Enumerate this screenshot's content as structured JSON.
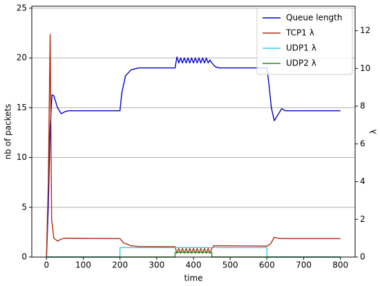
{
  "chart_data": {
    "type": "line",
    "xlabel": "time",
    "ylabel": "nb of packets",
    "y2label": "λ",
    "xlim": [
      -40,
      840
    ],
    "ylim": [
      0,
      25.2
    ],
    "y2lim": [
      0,
      13.3
    ],
    "xticks": [
      0,
      100,
      200,
      300,
      400,
      500,
      600,
      700,
      800
    ],
    "yticks": [
      0,
      5,
      10,
      15,
      20,
      25
    ],
    "y2ticks": [
      0,
      2,
      4,
      6,
      8,
      10,
      12
    ],
    "grid": true,
    "legend": "upper right",
    "series": [
      {
        "name": "Queue length",
        "color": "#0000cc",
        "axis": "y",
        "x": [
          0,
          5,
          10,
          15,
          20,
          30,
          40,
          50,
          60,
          200,
          205,
          215,
          230,
          250,
          350,
          355,
          360,
          365,
          370,
          375,
          380,
          385,
          390,
          395,
          400,
          405,
          410,
          415,
          420,
          425,
          430,
          435,
          440,
          445,
          450,
          460,
          470,
          600,
          605,
          612,
          620,
          630,
          640,
          650,
          800
        ],
        "values": [
          0,
          5,
          13,
          16.3,
          16.2,
          15,
          14.4,
          14.6,
          14.7,
          14.7,
          16.5,
          18.2,
          18.8,
          19.0,
          19.0,
          20.1,
          19.5,
          20.0,
          19.5,
          20.0,
          19.5,
          20.0,
          19.5,
          20.0,
          19.5,
          20.0,
          19.5,
          20.0,
          19.5,
          20.0,
          19.5,
          20.0,
          19.5,
          19.8,
          19.5,
          19.1,
          19.0,
          19.0,
          17.5,
          15.0,
          13.7,
          14.3,
          14.9,
          14.7,
          14.7
        ]
      },
      {
        "name": "TCP1 λ",
        "color": "#b22a0a",
        "axis": "y2",
        "x": [
          0,
          5,
          10,
          14,
          20,
          30,
          40,
          50,
          200,
          210,
          230,
          250,
          350,
          355,
          360,
          365,
          370,
          375,
          380,
          385,
          390,
          395,
          400,
          405,
          410,
          415,
          420,
          425,
          430,
          435,
          440,
          445,
          450,
          455,
          600,
          610,
          620,
          630,
          640,
          800
        ],
        "values": [
          0,
          4,
          11.8,
          2,
          1.0,
          0.85,
          0.95,
          1.0,
          0.98,
          0.75,
          0.6,
          0.56,
          0.55,
          0.2,
          0.45,
          0.2,
          0.45,
          0.2,
          0.45,
          0.2,
          0.45,
          0.2,
          0.45,
          0.2,
          0.45,
          0.2,
          0.45,
          0.2,
          0.45,
          0.2,
          0.45,
          0.2,
          0.45,
          0.6,
          0.58,
          0.7,
          1.05,
          1.0,
          0.98,
          0.98
        ]
      },
      {
        "name": "UDP1 λ",
        "color": "#33ccee",
        "axis": "y2",
        "x": [
          0,
          200,
          200,
          600,
          600,
          800
        ],
        "values": [
          0,
          0,
          0.5,
          0.5,
          0,
          0
        ]
      },
      {
        "name": "UDP2 λ",
        "color": "#228b22",
        "axis": "y2",
        "x": [
          0,
          350,
          350,
          450,
          450,
          800
        ],
        "values": [
          0,
          0,
          0.25,
          0.25,
          0,
          0
        ]
      }
    ]
  }
}
